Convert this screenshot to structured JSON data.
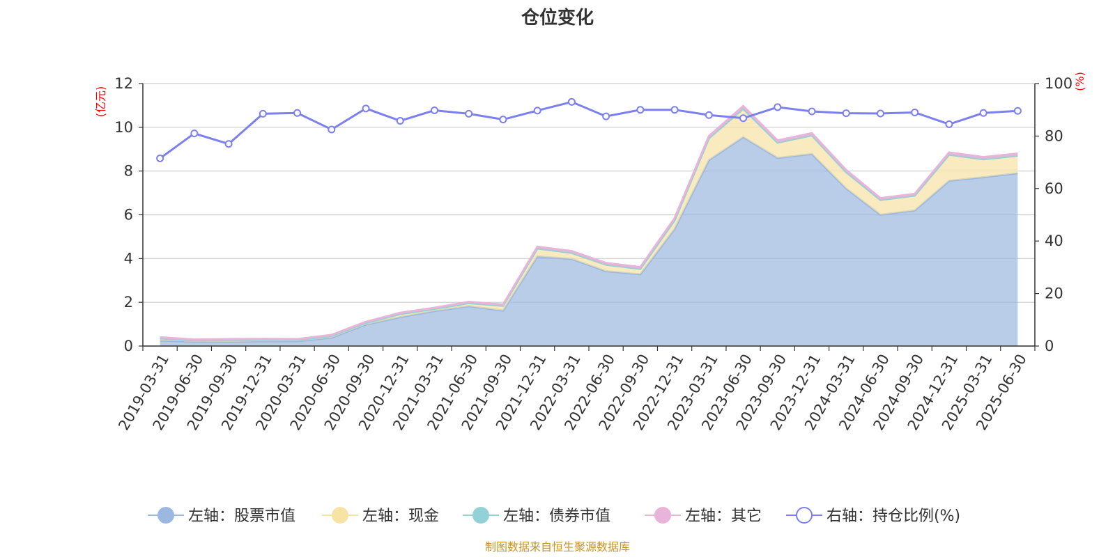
{
  "chart_data": {
    "type": "area",
    "title": "仓位变化",
    "left_axis_unit": "(亿元)",
    "right_axis_unit": "(%)",
    "x": [
      "2019-03-31",
      "2019-06-30",
      "2019-09-30",
      "2019-12-31",
      "2020-03-31",
      "2020-06-30",
      "2020-09-30",
      "2020-12-31",
      "2021-03-31",
      "2021-06-30",
      "2021-09-30",
      "2021-12-31",
      "2022-03-31",
      "2022-06-30",
      "2022-09-30",
      "2022-12-31",
      "2023-03-31",
      "2023-06-30",
      "2023-09-30",
      "2023-12-31",
      "2024-03-31",
      "2024-06-30",
      "2024-09-30",
      "2024-12-31",
      "2025-03-31",
      "2025-06-30"
    ],
    "y_left_ticks": [
      "0",
      "2",
      "4",
      "6",
      "8",
      "10",
      "12"
    ],
    "y_right_ticks": [
      "0",
      "20",
      "40",
      "60",
      "80",
      "100"
    ],
    "ylim_left": [
      0,
      12
    ],
    "ylim_right": [
      0,
      100
    ],
    "grid": true,
    "legend_position": "bottom",
    "series": [
      {
        "name": "左轴：股票市值",
        "axis": "left",
        "stack": true,
        "color": "#9bb8e0",
        "values": [
          0.25,
          0.2,
          0.2,
          0.22,
          0.22,
          0.38,
          0.98,
          1.32,
          1.6,
          1.82,
          1.62,
          4.1,
          3.98,
          3.42,
          3.28,
          5.35,
          8.5,
          9.55,
          8.6,
          8.78,
          7.2,
          6.0,
          6.2,
          7.55,
          7.72,
          7.9
        ]
      },
      {
        "name": "左轴：现金",
        "axis": "left",
        "stack": true,
        "color": "#f7e3a4",
        "values": [
          0.1,
          0.06,
          0.08,
          0.07,
          0.06,
          0.08,
          0.08,
          0.14,
          0.1,
          0.14,
          0.22,
          0.36,
          0.28,
          0.3,
          0.25,
          0.4,
          1.0,
          1.3,
          0.7,
          0.85,
          0.75,
          0.68,
          0.68,
          1.2,
          0.82,
          0.8
        ]
      },
      {
        "name": "左轴：债券市值",
        "axis": "left",
        "stack": true,
        "color": "#92d1d6",
        "values": [
          0,
          0,
          0,
          0,
          0,
          0,
          0,
          0,
          0,
          0,
          0,
          0,
          0,
          0,
          0,
          0,
          0,
          0,
          0,
          0,
          0,
          0,
          0,
          0,
          0,
          0
        ]
      },
      {
        "name": "左轴：其它",
        "axis": "left",
        "stack": true,
        "color": "#e8b4da",
        "values": [
          0.05,
          0.04,
          0.04,
          0.04,
          0.04,
          0.05,
          0.05,
          0.06,
          0.05,
          0.06,
          0.06,
          0.08,
          0.08,
          0.08,
          0.08,
          0.1,
          0.1,
          0.12,
          0.1,
          0.1,
          0.1,
          0.08,
          0.08,
          0.1,
          0.1,
          0.1
        ]
      },
      {
        "name": "右轴：持仓比例(%)",
        "axis": "right",
        "type": "line",
        "color": "#7b7ff0",
        "values": [
          71.5,
          81,
          77,
          88.5,
          88.8,
          82.5,
          90.5,
          85.8,
          89.8,
          88.5,
          86.3,
          89.7,
          93,
          87.5,
          90,
          90,
          88,
          86.8,
          91,
          89.4,
          88.7,
          88.6,
          89,
          84.5,
          88.8,
          89.6
        ]
      }
    ]
  },
  "source_text": "制图数据来自恒生聚源数据库"
}
